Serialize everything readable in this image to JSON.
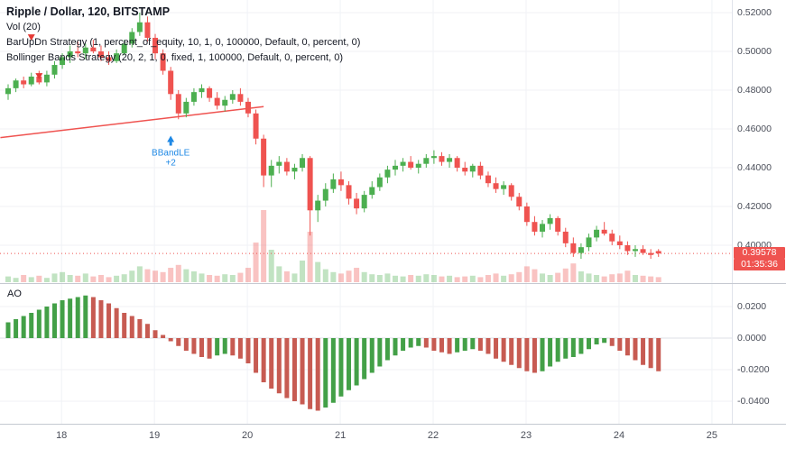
{
  "header": {
    "symbol_title": "Ripple / Dollar, 120, BITSTAMP",
    "indicators": [
      "Vol (20)",
      "BarUpDn Strategy (1, percent_of_equity, 10, 1, 0, 100000, Default, 0, percent, 0)",
      "Bollinger Bands Strategy (20, 2, 1, 0, fixed, 1, 100000, Default, 0, percent, 0)"
    ]
  },
  "price_axis": {
    "last_price_badge": "0.39578",
    "countdown_badge": "01:35:36"
  },
  "ao_pane": {
    "label": "AO"
  },
  "chart_data": {
    "type": "candlestick",
    "title": "Ripple / Dollar, 120, BITSTAMP",
    "symbol": "Ripple / Dollar",
    "interval_minutes": 120,
    "exchange": "BITSTAMP",
    "last_price": 0.39578,
    "price_range": [
      0.3805,
      0.5265
    ],
    "ao_range": [
      -0.0531,
      0.0343
    ],
    "grid": true,
    "layout": {
      "pane_width": 811,
      "x0": 9,
      "dx": 8.58,
      "main_height": 314,
      "vol_base": 313,
      "vol_scale": 0.8,
      "ao_top": 315,
      "ao_height": 155,
      "ao_zero": 60,
      "ao_scale": 1750
    },
    "scales": {
      "price": {
        "p1": 0.52,
        "y1": 14,
        "p2": 0.4,
        "y2": 272
      }
    },
    "price_ticks": [
      {
        "v": 0.52,
        "label": "0.52000"
      },
      {
        "v": 0.5,
        "label": "0.50000"
      },
      {
        "v": 0.48,
        "label": "0.48000"
      },
      {
        "v": 0.46,
        "label": "0.46000"
      },
      {
        "v": 0.44,
        "label": "0.44000"
      },
      {
        "v": 0.42,
        "label": "0.42000"
      },
      {
        "v": 0.4,
        "label": "0.40000"
      }
    ],
    "ao_ticks": [
      {
        "v": 0.02,
        "label": "0.0200"
      },
      {
        "v": 0.0,
        "label": "0.0000"
      },
      {
        "v": -0.02,
        "label": "-0.0200"
      },
      {
        "v": -0.04,
        "label": "-0.0400"
      }
    ],
    "x_ticks": [
      {
        "i": 6.9,
        "label": "18"
      },
      {
        "i": 18.9,
        "label": "19"
      },
      {
        "i": 30.9,
        "label": "20"
      },
      {
        "i": 42.9,
        "label": "21"
      },
      {
        "i": 54.9,
        "label": "22"
      },
      {
        "i": 66.9,
        "label": "23"
      },
      {
        "i": 78.9,
        "label": "24"
      },
      {
        "i": 90.9,
        "label": "25"
      }
    ],
    "candles": [
      [
        0.478,
        0.483,
        0.475,
        0.481
      ],
      [
        0.481,
        0.486,
        0.479,
        0.485
      ],
      [
        0.485,
        0.487,
        0.481,
        0.483
      ],
      [
        0.483,
        0.489,
        0.482,
        0.487
      ],
      [
        0.487,
        0.49,
        0.483,
        0.484
      ],
      [
        0.484,
        0.49,
        0.482,
        0.488
      ],
      [
        0.488,
        0.495,
        0.486,
        0.493
      ],
      [
        0.493,
        0.499,
        0.491,
        0.497
      ],
      [
        0.497,
        0.503,
        0.494,
        0.5
      ],
      [
        0.5,
        0.505,
        0.497,
        0.499
      ],
      [
        0.499,
        0.504,
        0.496,
        0.502
      ],
      [
        0.502,
        0.506,
        0.499,
        0.5
      ],
      [
        0.5,
        0.503,
        0.495,
        0.497
      ],
      [
        0.497,
        0.5,
        0.493,
        0.495
      ],
      [
        0.495,
        0.501,
        0.494,
        0.499
      ],
      [
        0.499,
        0.506,
        0.498,
        0.504
      ],
      [
        0.504,
        0.512,
        0.502,
        0.51
      ],
      [
        0.51,
        0.52,
        0.508,
        0.515
      ],
      [
        0.515,
        0.518,
        0.505,
        0.507
      ],
      [
        0.507,
        0.509,
        0.496,
        0.499
      ],
      [
        0.499,
        0.501,
        0.488,
        0.49
      ],
      [
        0.49,
        0.492,
        0.475,
        0.478
      ],
      [
        0.478,
        0.48,
        0.465,
        0.468
      ],
      [
        0.468,
        0.476,
        0.466,
        0.474
      ],
      [
        0.474,
        0.481,
        0.472,
        0.479
      ],
      [
        0.479,
        0.483,
        0.476,
        0.481
      ],
      [
        0.481,
        0.482,
        0.474,
        0.476
      ],
      [
        0.476,
        0.479,
        0.47,
        0.472
      ],
      [
        0.472,
        0.477,
        0.469,
        0.475
      ],
      [
        0.475,
        0.48,
        0.473,
        0.478
      ],
      [
        0.478,
        0.481,
        0.472,
        0.474
      ],
      [
        0.474,
        0.476,
        0.466,
        0.468
      ],
      [
        0.468,
        0.47,
        0.452,
        0.455
      ],
      [
        0.455,
        0.457,
        0.43,
        0.436
      ],
      [
        0.436,
        0.444,
        0.43,
        0.441
      ],
      [
        0.441,
        0.446,
        0.437,
        0.443
      ],
      [
        0.443,
        0.445,
        0.436,
        0.438
      ],
      [
        0.438,
        0.442,
        0.434,
        0.44
      ],
      [
        0.44,
        0.447,
        0.438,
        0.445
      ],
      [
        0.445,
        0.446,
        0.405,
        0.418
      ],
      [
        0.418,
        0.426,
        0.412,
        0.423
      ],
      [
        0.423,
        0.432,
        0.42,
        0.429
      ],
      [
        0.429,
        0.437,
        0.427,
        0.434
      ],
      [
        0.434,
        0.438,
        0.428,
        0.431
      ],
      [
        0.431,
        0.433,
        0.421,
        0.424
      ],
      [
        0.424,
        0.427,
        0.416,
        0.419
      ],
      [
        0.419,
        0.428,
        0.417,
        0.426
      ],
      [
        0.426,
        0.433,
        0.424,
        0.43
      ],
      [
        0.43,
        0.437,
        0.428,
        0.435
      ],
      [
        0.435,
        0.441,
        0.432,
        0.439
      ],
      [
        0.439,
        0.444,
        0.436,
        0.441
      ],
      [
        0.441,
        0.445,
        0.438,
        0.443
      ],
      [
        0.443,
        0.446,
        0.439,
        0.44
      ],
      [
        0.44,
        0.444,
        0.437,
        0.442
      ],
      [
        0.442,
        0.447,
        0.44,
        0.445
      ],
      [
        0.445,
        0.449,
        0.442,
        0.446
      ],
      [
        0.446,
        0.448,
        0.441,
        0.443
      ],
      [
        0.443,
        0.447,
        0.44,
        0.445
      ],
      [
        0.445,
        0.446,
        0.438,
        0.44
      ],
      [
        0.44,
        0.443,
        0.436,
        0.438
      ],
      [
        0.438,
        0.442,
        0.435,
        0.441
      ],
      [
        0.441,
        0.443,
        0.434,
        0.436
      ],
      [
        0.436,
        0.438,
        0.43,
        0.432
      ],
      [
        0.432,
        0.435,
        0.427,
        0.429
      ],
      [
        0.429,
        0.433,
        0.426,
        0.431
      ],
      [
        0.431,
        0.432,
        0.423,
        0.425
      ],
      [
        0.425,
        0.427,
        0.418,
        0.42
      ],
      [
        0.42,
        0.422,
        0.41,
        0.412
      ],
      [
        0.412,
        0.415,
        0.405,
        0.407
      ],
      [
        0.407,
        0.413,
        0.404,
        0.411
      ],
      [
        0.411,
        0.416,
        0.408,
        0.414
      ],
      [
        0.414,
        0.415,
        0.405,
        0.407
      ],
      [
        0.407,
        0.409,
        0.399,
        0.401
      ],
      [
        0.401,
        0.404,
        0.394,
        0.396
      ],
      [
        0.396,
        0.401,
        0.393,
        0.399
      ],
      [
        0.399,
        0.406,
        0.397,
        0.404
      ],
      [
        0.404,
        0.41,
        0.402,
        0.408
      ],
      [
        0.408,
        0.412,
        0.405,
        0.406
      ],
      [
        0.406,
        0.408,
        0.4,
        0.402
      ],
      [
        0.402,
        0.405,
        0.398,
        0.4
      ],
      [
        0.4,
        0.402,
        0.395,
        0.397
      ],
      [
        0.397,
        0.4,
        0.394,
        0.398
      ],
      [
        0.398,
        0.4,
        0.395,
        0.396
      ],
      [
        0.396,
        0.398,
        0.393,
        0.395
      ],
      [
        0.397,
        0.398,
        0.394,
        0.39578
      ]
    ],
    "volume": [
      8,
      6,
      10,
      7,
      9,
      6,
      12,
      14,
      10,
      9,
      12,
      8,
      10,
      7,
      9,
      11,
      16,
      22,
      18,
      16,
      14,
      20,
      24,
      18,
      15,
      12,
      10,
      9,
      11,
      10,
      13,
      20,
      55,
      100,
      45,
      22,
      15,
      12,
      30,
      70,
      28,
      18,
      14,
      12,
      16,
      20,
      14,
      11,
      10,
      12,
      9,
      8,
      10,
      9,
      11,
      10,
      8,
      9,
      7,
      8,
      9,
      7,
      10,
      12,
      9,
      11,
      14,
      22,
      18,
      12,
      10,
      13,
      19,
      26,
      15,
      12,
      10,
      8,
      11,
      12,
      16,
      10,
      9,
      8,
      7
    ],
    "ao": [
      0.01,
      0.012,
      0.014,
      0.016,
      0.018,
      0.02,
      0.022,
      0.024,
      0.025,
      0.026,
      0.027,
      0.026,
      0.024,
      0.022,
      0.019,
      0.016,
      0.014,
      0.012,
      0.009,
      0.005,
      0.002,
      -0.002,
      -0.005,
      -0.008,
      -0.01,
      -0.012,
      -0.013,
      -0.011,
      -0.01,
      -0.011,
      -0.013,
      -0.016,
      -0.022,
      -0.028,
      -0.032,
      -0.035,
      -0.038,
      -0.04,
      -0.042,
      -0.045,
      -0.046,
      -0.044,
      -0.041,
      -0.037,
      -0.033,
      -0.03,
      -0.026,
      -0.022,
      -0.018,
      -0.014,
      -0.011,
      -0.008,
      -0.006,
      -0.005,
      -0.006,
      -0.008,
      -0.009,
      -0.01,
      -0.009,
      -0.008,
      -0.007,
      -0.008,
      -0.01,
      -0.013,
      -0.015,
      -0.017,
      -0.019,
      -0.021,
      -0.022,
      -0.021,
      -0.018,
      -0.015,
      -0.013,
      -0.012,
      -0.01,
      -0.007,
      -0.004,
      -0.003,
      -0.005,
      -0.008,
      -0.011,
      -0.014,
      -0.017,
      -0.019,
      -0.021
    ],
    "annotations": {
      "trendline": {
        "i1": -1,
        "p1": 0.4555,
        "i2": 33,
        "p2": 0.4715
      },
      "sell_markers": [
        {
          "i": 3,
          "p": 0.5055
        },
        {
          "i": 4,
          "p": 0.4855
        }
      ],
      "bband_marker": {
        "i": 21,
        "p": 0.4565,
        "label": "BBandLE",
        "sublabel": "+2"
      }
    },
    "colors": {
      "up": "#4caf50",
      "down": "#ef5350",
      "vol_up": "rgba(76,175,80,0.35)",
      "vol_down": "rgba(239,83,80,0.35)",
      "ao_up": "#43a047",
      "ao_down": "#c75b52",
      "trendline": "#ef5350",
      "last_price_line": "#ef5350",
      "badge_bg": "#ef5350",
      "marker_sell": "#e53935",
      "bband_label": "#1e88e5",
      "grid": "#f0f2f6",
      "ao_zero_line": "#dcdfe5",
      "axis_text": "#4a4e59",
      "pane_border": "#c5c9d1"
    }
  }
}
